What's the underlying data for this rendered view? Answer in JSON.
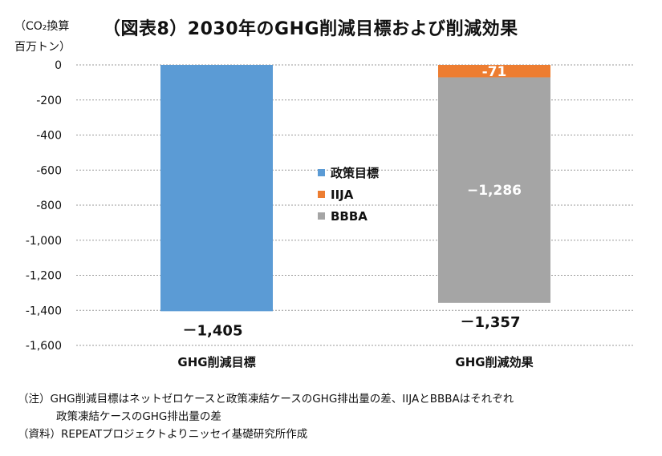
{
  "title": "（図表8）2030年のGHG削減目標および削減効果",
  "unit_line1": "（CO₂換算",
  "unit_line2": "百万トン）",
  "notes": [
    "（注）GHG削減目標はネットゼロケースと政策凍結ケースのGHG排出量の差、IIJAとBBBAはそれぞれ",
    "政策凍結ケースのGHG排出量の差",
    "（資料）REPEATプロジェクトよりニッセイ基礎研究所作成"
  ],
  "chart_data": {
    "type": "bar",
    "stacked": true,
    "categories": [
      "GHG削減目標",
      "GHG削減効果"
    ],
    "series": [
      {
        "name": "政策目標",
        "values": [
          -1405,
          0
        ],
        "color": "#5B9BD5"
      },
      {
        "name": "IIJA",
        "values": [
          0,
          -71
        ],
        "color": "#ED7D31"
      },
      {
        "name": "BBBA",
        "values": [
          0,
          -1286
        ],
        "color": "#A5A5A5"
      }
    ],
    "totals": [
      {
        "category": "GHG削減目標",
        "label": "－1,405"
      },
      {
        "category": "GHG削減効果",
        "label": "－1,357"
      }
    ],
    "segment_labels": [
      {
        "series": "IIJA",
        "category": "GHG削減効果",
        "label": "-71"
      },
      {
        "series": "BBBA",
        "category": "GHG削減効果",
        "label": "−1,286"
      }
    ],
    "yticks": [
      0,
      -200,
      -400,
      -600,
      -800,
      -1000,
      -1200,
      -1400,
      -1600
    ],
    "ytick_labels": [
      "0",
      "-200",
      "-400",
      "-600",
      "-800",
      "-1,000",
      "-1,200",
      "-1,400",
      "-1,600"
    ],
    "ylim": [
      -1600,
      0
    ],
    "grid": true,
    "legend_position": "center"
  }
}
